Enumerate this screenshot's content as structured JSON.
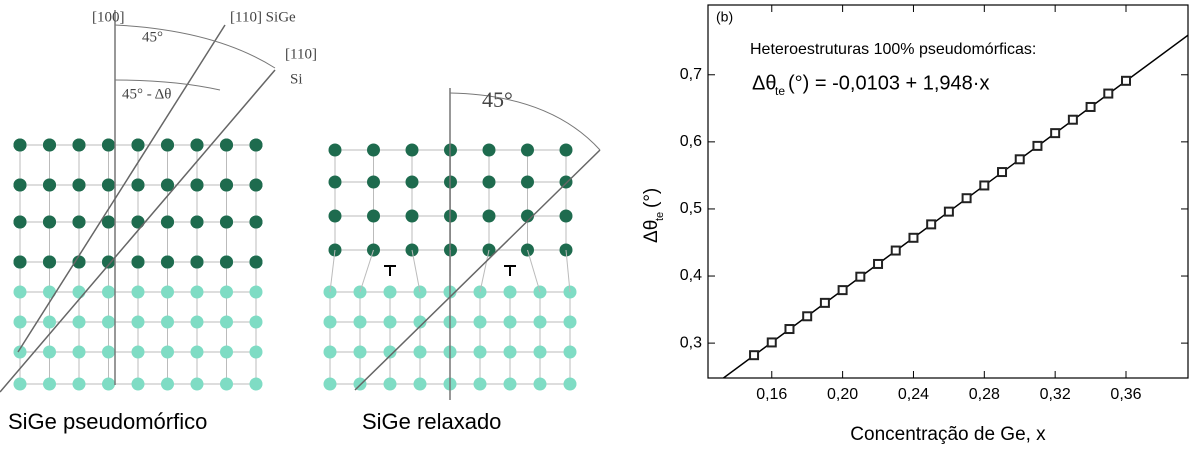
{
  "diagrams": {
    "left": {
      "dir100": "[100]",
      "angle": "45°",
      "dir110_sige": "[110] SiGe",
      "dir110": "[110]",
      "si": "Si",
      "angle_diff": "45° - Δθ",
      "caption": "SiGe pseudomórfico"
    },
    "right": {
      "angle": "45°",
      "caption": "SiGe relaxado"
    }
  },
  "chart_data": {
    "type": "scatter",
    "panel_label": "(b)",
    "annotation": "Heteroestruturas 100% pseudomórficas:",
    "equation": {
      "symbol": "Δθ",
      "subscript": "te",
      "text": "(°) = -0,0103 + 1,948·x"
    },
    "x_label": "Concentração de Ge, x",
    "y_label": {
      "symbol": "Δθ",
      "subscript": "te",
      "unit": "(°)"
    },
    "x": [
      0.15,
      0.16,
      0.17,
      0.18,
      0.19,
      0.2,
      0.21,
      0.22,
      0.23,
      0.24,
      0.25,
      0.26,
      0.27,
      0.28,
      0.29,
      0.3,
      0.31,
      0.32,
      0.33,
      0.34,
      0.35,
      0.36
    ],
    "series": [
      {
        "color": "#222",
        "values": [
          0.282,
          0.301,
          0.321,
          0.34,
          0.36,
          0.379,
          0.399,
          0.418,
          0.438,
          0.457,
          0.477,
          0.496,
          0.516,
          0.535,
          0.555,
          0.574,
          0.594,
          0.613,
          0.633,
          0.652,
          0.672,
          0.691
        ]
      }
    ],
    "fit_line": {
      "color": "#000",
      "x": [
        0.124,
        0.395
      ],
      "values": [
        0.231,
        0.759
      ]
    },
    "xlim": [
      0.124,
      0.395
    ],
    "ylim": [
      0.248,
      0.804
    ],
    "xticks": [
      {
        "value": 0.16,
        "label": "0,16"
      },
      {
        "value": 0.2,
        "label": "0,20"
      },
      {
        "value": 0.24,
        "label": "0,24"
      },
      {
        "value": 0.28,
        "label": "0,28"
      },
      {
        "value": 0.32,
        "label": "0,32"
      },
      {
        "value": 0.36,
        "label": "0,36"
      }
    ],
    "yticks": [
      {
        "value": 0.3,
        "label": "0,3"
      },
      {
        "value": 0.4,
        "label": "0,4"
      },
      {
        "value": 0.5,
        "label": "0,5"
      },
      {
        "value": 0.6,
        "label": "0,6"
      },
      {
        "value": 0.7,
        "label": "0,7"
      }
    ]
  }
}
